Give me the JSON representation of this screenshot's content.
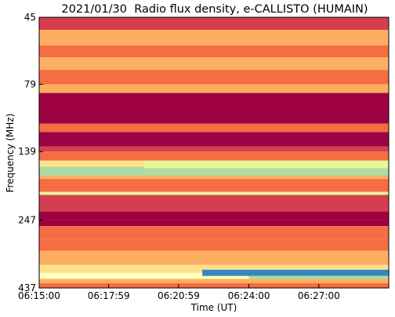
{
  "chart_data": {
    "type": "heatmap",
    "title": "2021/01/30  Radio flux density, e-CALLISTO (HUMAIN)",
    "xlabel": "Time (UT)",
    "ylabel": "Frequency (MHz)",
    "x_ticks": [
      "06:15:00",
      "06:17:59",
      "06:20:59",
      "06:24:00",
      "06:27:00"
    ],
    "y_ticks": [
      "45",
      "79",
      "139",
      "247",
      "437"
    ],
    "x_range": [
      "06:15:00",
      "06:30:00"
    ],
    "y_range": [
      45,
      437
    ],
    "colormap": "Spectral",
    "colorscale": [
      "#9e0142",
      "#d53e4f",
      "#f46d43",
      "#fdae61",
      "#fee08b",
      "#ffffbf",
      "#e6f598",
      "#abdda4",
      "#66c2a5",
      "#3288bd",
      "#5e4fa2"
    ],
    "rows": [
      {
        "f_from": 45,
        "f_to": 50,
        "level": 0.05
      },
      {
        "f_from": 50,
        "f_to": 57,
        "level": 0.32
      },
      {
        "f_from": 57,
        "f_to": 63,
        "level": 0.18
      },
      {
        "f_from": 63,
        "f_to": 70,
        "level": 0.3
      },
      {
        "f_from": 70,
        "f_to": 79,
        "level": 0.22
      },
      {
        "f_from": 79,
        "f_to": 85,
        "level": 0.26
      },
      {
        "f_from": 85,
        "f_to": 110,
        "level": 0.0
      },
      {
        "f_from": 110,
        "f_to": 118,
        "level": 0.22
      },
      {
        "f_from": 118,
        "f_to": 133,
        "level": 0.0
      },
      {
        "f_from": 133,
        "f_to": 139,
        "level": 0.1
      },
      {
        "f_from": 139,
        "f_to": 150,
        "level": 0.2
      },
      {
        "f_from": 150,
        "f_to": 158,
        "level": 0.42
      },
      {
        "f_from": 158,
        "f_to": 165,
        "level": 0.6
      },
      {
        "f_from": 165,
        "f_to": 175,
        "level": 0.28
      },
      {
        "f_from": 175,
        "f_to": 195,
        "level": 0.18
      },
      {
        "f_from": 195,
        "f_to": 200,
        "level": 0.55
      },
      {
        "f_from": 200,
        "f_to": 230,
        "level": 0.08
      },
      {
        "f_from": 230,
        "f_to": 247,
        "level": 0.04
      },
      {
        "f_from": 247,
        "f_to": 260,
        "level": 0.0
      },
      {
        "f_from": 260,
        "f_to": 290,
        "level": 0.16
      },
      {
        "f_from": 290,
        "f_to": 320,
        "level": 0.24
      },
      {
        "f_from": 320,
        "f_to": 360,
        "level": 0.3
      },
      {
        "f_from": 360,
        "f_to": 385,
        "level": 0.36
      },
      {
        "f_from": 385,
        "f_to": 405,
        "level": 0.5
      },
      {
        "f_from": 405,
        "f_to": 420,
        "level": 0.3
      },
      {
        "f_from": 420,
        "f_to": 437,
        "level": 0.22
      }
    ],
    "bursts": [
      {
        "t_start": "06:15:00",
        "t_end": "06:30:00",
        "f_from": 158,
        "f_to": 170,
        "level": 0.72
      },
      {
        "t_start": "06:19:30",
        "t_end": "06:30:00",
        "f_from": 150,
        "f_to": 160,
        "level": 0.62
      },
      {
        "t_start": "06:22:00",
        "t_end": "06:30:00",
        "f_from": 375,
        "f_to": 395,
        "level": 0.85
      },
      {
        "t_start": "06:24:00",
        "t_end": "06:30:00",
        "f_from": 395,
        "f_to": 405,
        "level": 0.65
      }
    ]
  }
}
